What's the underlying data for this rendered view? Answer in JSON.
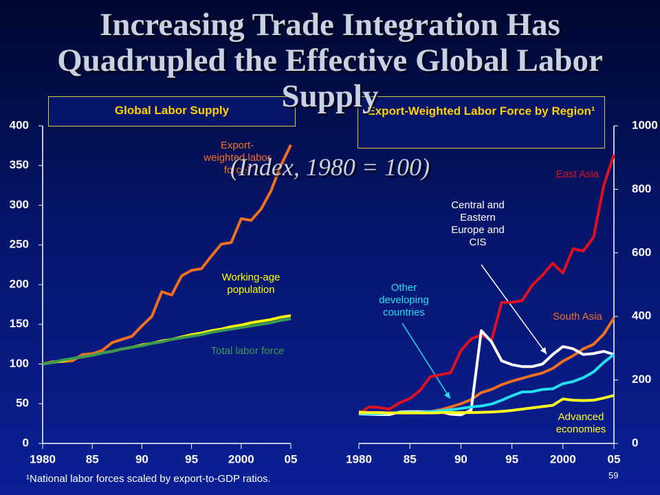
{
  "title": "Increasing Trade Integration Has Quadrupled the Effective Global Labor Supply",
  "subtitle": "(Index, 1980 = 100)",
  "footnote": "¹National labor forces scaled by export-to-GDP ratios.",
  "page_number": "59",
  "chart_data": [
    {
      "type": "line",
      "title": "Global Labor Supply",
      "x": [
        1980,
        1981,
        1982,
        1983,
        1984,
        1985,
        1986,
        1987,
        1988,
        1989,
        1990,
        1991,
        1992,
        1993,
        1994,
        1995,
        1996,
        1997,
        1998,
        1999,
        2000,
        2001,
        2002,
        2003,
        2004,
        2005
      ],
      "xlim": [
        1980,
        2005
      ],
      "xticks": [
        1980,
        {
          "value": 1985,
          "label": "85"
        },
        {
          "value": 1990,
          "label": "90"
        },
        {
          "value": 1995,
          "label": "95"
        },
        2000,
        {
          "value": 2005,
          "label": "05"
        }
      ],
      "ylim": [
        0,
        400
      ],
      "yticks": [
        0,
        50,
        100,
        150,
        200,
        250,
        300,
        350,
        400
      ],
      "y_axis_position": "left",
      "series": [
        {
          "name": "Export-weighted labor force¹",
          "color": "#f07020",
          "values": [
            100,
            103,
            103,
            104,
            112,
            113,
            117,
            127,
            131,
            135,
            148,
            160,
            191,
            187,
            211,
            218,
            220,
            236,
            251,
            253,
            283,
            281,
            295,
            318,
            350,
            376
          ]
        },
        {
          "name": "Working-age population",
          "color": "#ffff00",
          "values": [
            100,
            102,
            104,
            107,
            109,
            111,
            114,
            116,
            119,
            121,
            124,
            126,
            129,
            131,
            134,
            137,
            139,
            142,
            144,
            147,
            149,
            152,
            154,
            156,
            159,
            161
          ]
        },
        {
          "name": "Total labor force",
          "color": "#3a9a50",
          "values": [
            100,
            102,
            105,
            107,
            109,
            111,
            114,
            116,
            119,
            121,
            123,
            126,
            128,
            131,
            133,
            135,
            137,
            140,
            142,
            144,
            146,
            148,
            150,
            152,
            155,
            157
          ]
        }
      ]
    },
    {
      "type": "line",
      "title": "Export-Weighted Labor Force by Region¹",
      "x": [
        1980,
        1981,
        1982,
        1983,
        1984,
        1985,
        1986,
        1987,
        1988,
        1989,
        1990,
        1991,
        1992,
        1993,
        1994,
        1995,
        1996,
        1997,
        1998,
        1999,
        2000,
        2001,
        2002,
        2003,
        2004,
        2005
      ],
      "xlim": [
        1980,
        2005
      ],
      "xticks": [
        1980,
        {
          "value": 1985,
          "label": "85"
        },
        {
          "value": 1990,
          "label": "90"
        },
        {
          "value": 1995,
          "label": "95"
        },
        2000,
        {
          "value": 2005,
          "label": "05"
        }
      ],
      "ylim": [
        0,
        1000
      ],
      "yticks": [
        0,
        200,
        400,
        600,
        800,
        1000
      ],
      "y_axis_position": "right",
      "series": [
        {
          "name": "East Asia",
          "color": "#e01020",
          "values": [
            93,
            115,
            113,
            108,
            128,
            141,
            167,
            210,
            216,
            223,
            292,
            329,
            342,
            325,
            444,
            444,
            450,
            498,
            530,
            567,
            537,
            613,
            606,
            649,
            812,
            909
          ]
        },
        {
          "name": "South Asia",
          "color": "#f07020",
          "values": [
            100,
            97,
            96,
            95,
            97,
            97,
            97,
            100,
            106,
            115,
            125,
            138,
            160,
            170,
            185,
            196,
            205,
            214,
            222,
            236,
            259,
            276,
            298,
            312,
            344,
            395
          ]
        },
        {
          "name": "Central and Eastern Europe and CIS",
          "color": "#ffffff",
          "values": [
            93,
            92,
            91,
            91,
            99,
            100,
            100,
            100,
            100,
            92,
            90,
            105,
            355,
            320,
            260,
            248,
            242,
            242,
            250,
            280,
            305,
            298,
            280,
            283,
            290,
            280
          ]
        },
        {
          "name": "Other developing countries",
          "color": "#20e0f0",
          "values": [
            95,
            94,
            94,
            96,
            97,
            97,
            98,
            100,
            103,
            106,
            110,
            115,
            118,
            124,
            136,
            150,
            162,
            163,
            170,
            172,
            188,
            195,
            207,
            225,
            255,
            280
          ]
        },
        {
          "name": "Advanced economies",
          "color": "#ffff20",
          "values": [
            97,
            97,
            97,
            96,
            96,
            96,
            96,
            96,
            97,
            97,
            97,
            97,
            98,
            99,
            101,
            104,
            108,
            112,
            116,
            120,
            140,
            136,
            135,
            136,
            143,
            151
          ]
        }
      ]
    }
  ]
}
